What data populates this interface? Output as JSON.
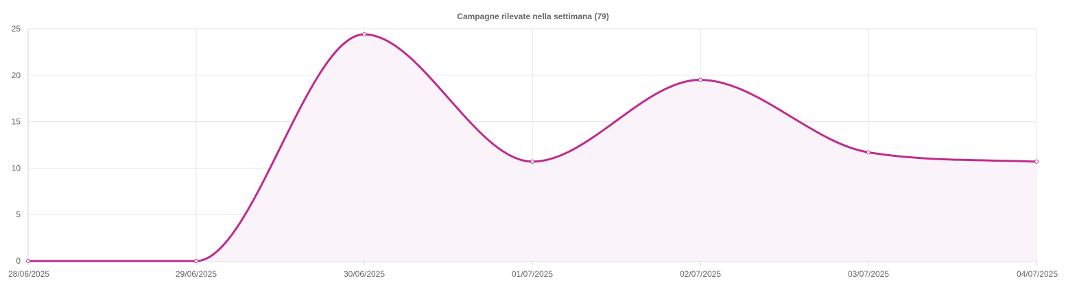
{
  "chart_data": {
    "type": "line",
    "title": "Campagne rilevate nella settimana (79)",
    "categories": [
      "28/06/2025",
      "29/06/2025",
      "30/06/2025",
      "01/07/2025",
      "02/07/2025",
      "03/07/2025",
      "04/07/2025"
    ],
    "series": [
      {
        "values": [
          0,
          0,
          24.4,
          10.7,
          19.5,
          11.7,
          10.7
        ],
        "color": "#c02a8c",
        "fill": "#fbf3fa"
      }
    ],
    "yticks": [
      0,
      5,
      10,
      15,
      20,
      25
    ],
    "ylim": [
      0,
      25
    ],
    "grid": true,
    "legend": false,
    "smooth": true
  }
}
